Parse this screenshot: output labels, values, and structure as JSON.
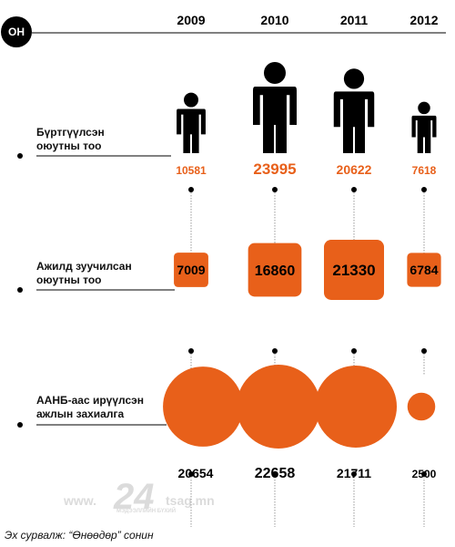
{
  "header": {
    "badge": "ОН"
  },
  "chart_data": {
    "type": "pictograph",
    "categories": [
      "2009",
      "2010",
      "2011",
      "2012"
    ],
    "series": [
      {
        "name": "Бүртгүүлсэн оюутны тоо",
        "values": [
          10581,
          23995,
          20622,
          7618
        ],
        "mark": "person-icon",
        "label_color": "#e8601a"
      },
      {
        "name": "Ажилд зуучилсан оюутны тоо",
        "values": [
          7009,
          16860,
          21330,
          6784
        ],
        "mark": "rounded-square",
        "label_color": "#000000"
      },
      {
        "name": "ААНБ-аас ирүүлсэн ажлын захиалга",
        "values": [
          20654,
          22658,
          21711,
          2500
        ],
        "mark": "circle",
        "label_color": "#000000"
      }
    ],
    "row_labels": [
      [
        "Бүртгүүлсэн",
        "оюутны тоо"
      ],
      [
        "Ажилд зуучилсан",
        "оюутны тоо"
      ],
      [
        "ААНБ-аас ирүүлсэн",
        "ажлын захиалга"
      ]
    ],
    "colors": {
      "accent": "#e8601a",
      "ink": "#000000",
      "connector": "#999999"
    }
  },
  "footer": {
    "source": "Эх сурвалж: “Өнөөдөр” сонин",
    "watermark_main": "24",
    "watermark_prefix": "www.",
    "watermark_suffix": "tsag.mn",
    "watermark_sub": "МЭДЭЭЛЛИЙН БҮХИЙ"
  }
}
